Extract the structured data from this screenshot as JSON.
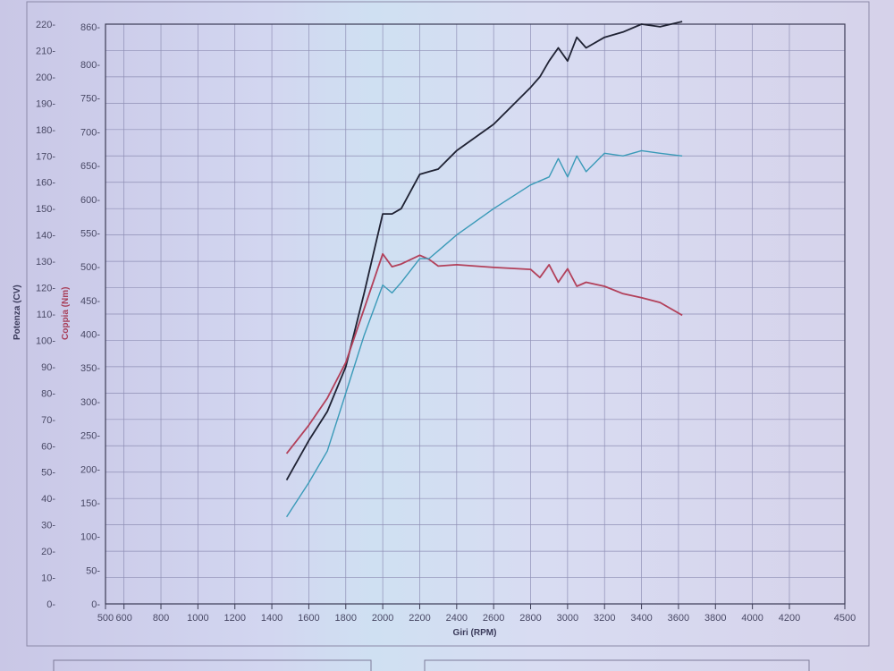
{
  "chart_data": {
    "type": "line",
    "title": "",
    "xlabel": "Giri (RPM)",
    "ylabel_left": "Potenza (CV)",
    "ylabel_right": "Coppia (Nm)",
    "xlim": [
      500,
      4500
    ],
    "ylim_power": [
      0,
      220
    ],
    "ylim_torque": [
      0,
      860
    ],
    "x_ticks": [
      500,
      600,
      800,
      1000,
      1200,
      1400,
      1600,
      1800,
      2000,
      2200,
      2400,
      2600,
      2800,
      3000,
      3200,
      3400,
      3600,
      3800,
      4000,
      4200,
      4500
    ],
    "power_ticks": [
      0,
      10,
      20,
      30,
      40,
      50,
      60,
      70,
      80,
      90,
      100,
      110,
      120,
      130,
      140,
      150,
      160,
      170,
      180,
      190,
      200,
      210,
      220
    ],
    "torque_ticks": [
      0,
      50,
      100,
      150,
      200,
      250,
      300,
      350,
      400,
      450,
      500,
      550,
      600,
      650,
      700,
      750,
      800,
      860
    ],
    "grid": true,
    "colors": {
      "power": "#1f2233",
      "torque": "#b2405a",
      "power_2": "#3a9ab8",
      "power_axis_label": "#3a3a5a",
      "torque_axis_label": "#a8405a"
    },
    "series": [
      {
        "axis": "power",
        "color_key": "power",
        "x": [
          1480,
          1600,
          1700,
          1800,
          1900,
          2000,
          2050,
          2100,
          2200,
          2250,
          2300,
          2400,
          2600,
          2800,
          2850,
          2900,
          2950,
          3000,
          3050,
          3100,
          3200,
          3300,
          3400,
          3500,
          3620
        ],
        "y": [
          47,
          62,
          73,
          90,
          118,
          148,
          148,
          150,
          163,
          164,
          165,
          172,
          182,
          196,
          200,
          206,
          211,
          206,
          215,
          211,
          215,
          217,
          220,
          219,
          221
        ]
      },
      {
        "axis": "torque",
        "color_key": "torque",
        "x": [
          1480,
          1600,
          1700,
          1800,
          1900,
          2000,
          2050,
          2100,
          2200,
          2250,
          2300,
          2400,
          2600,
          2800,
          2850,
          2900,
          2950,
          3000,
          3050,
          3100,
          3200,
          3300,
          3400,
          3500,
          3620
        ],
        "y": [
          223,
          265,
          305,
          358,
          438,
          519,
          500,
          504,
          517,
          511,
          501,
          503,
          499,
          496,
          484,
          503,
          477,
          497,
          471,
          477,
          471,
          460,
          454,
          447,
          428
        ]
      },
      {
        "axis": "power",
        "color_key": "power_2",
        "x": [
          1480,
          1600,
          1700,
          1800,
          1900,
          2000,
          2050,
          2100,
          2200,
          2250,
          2300,
          2400,
          2600,
          2800,
          2900,
          2950,
          3000,
          3050,
          3100,
          3200,
          3300,
          3400,
          3500,
          3620
        ],
        "y": [
          33,
          46,
          58,
          80,
          102,
          121,
          118,
          122,
          131,
          131,
          134,
          140,
          150,
          159,
          162,
          169,
          162,
          170,
          164,
          171,
          170,
          172,
          171,
          170
        ]
      }
    ]
  }
}
